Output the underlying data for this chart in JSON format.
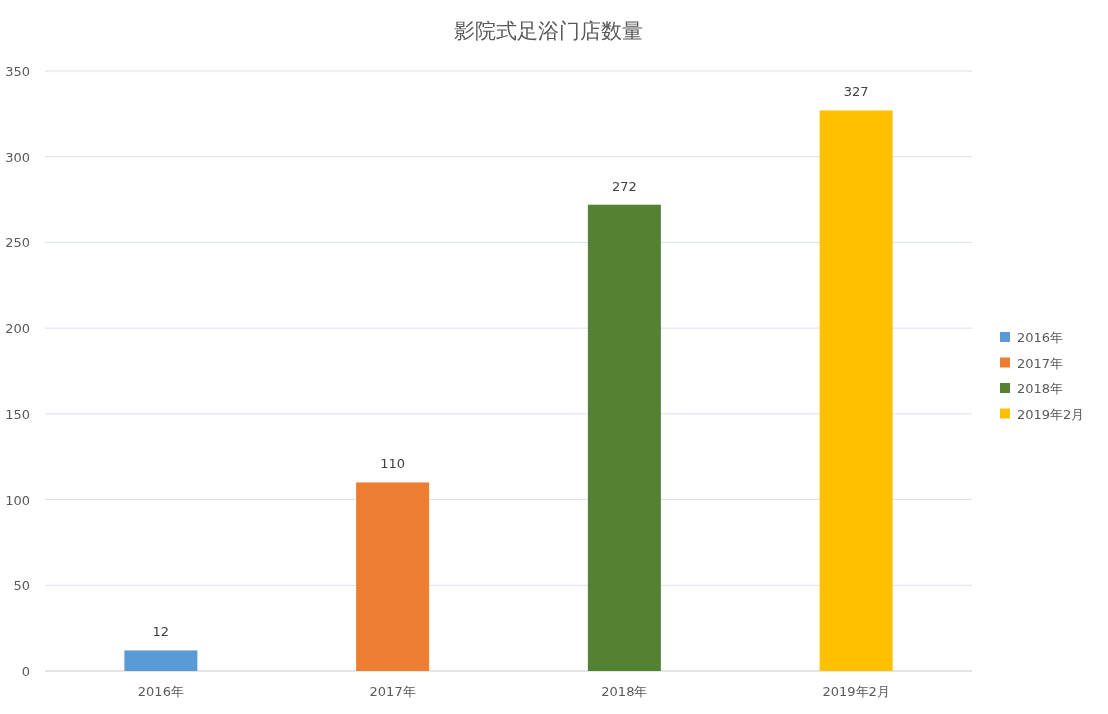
{
  "chart_data": {
    "type": "bar",
    "title": "影院式足浴门店数量",
    "categories": [
      "2016年",
      "2017年",
      "2018年",
      "2019年2月"
    ],
    "series": [
      {
        "name": "2016年",
        "color": "#5b9bd5",
        "values": [
          12,
          null,
          null,
          null
        ]
      },
      {
        "name": "2017年",
        "color": "#ed7d31",
        "values": [
          null,
          110,
          null,
          null
        ]
      },
      {
        "name": "2018年",
        "color": "#548235",
        "values": [
          null,
          null,
          272,
          null
        ]
      },
      {
        "name": "2019年2月",
        "color": "#ffc000",
        "values": [
          null,
          null,
          null,
          327
        ]
      }
    ],
    "ylim": [
      0,
      350
    ],
    "yticks": [
      0,
      50,
      100,
      150,
      200,
      250,
      300,
      350
    ],
    "grid": "y",
    "legend": "right",
    "data_labels": true
  }
}
